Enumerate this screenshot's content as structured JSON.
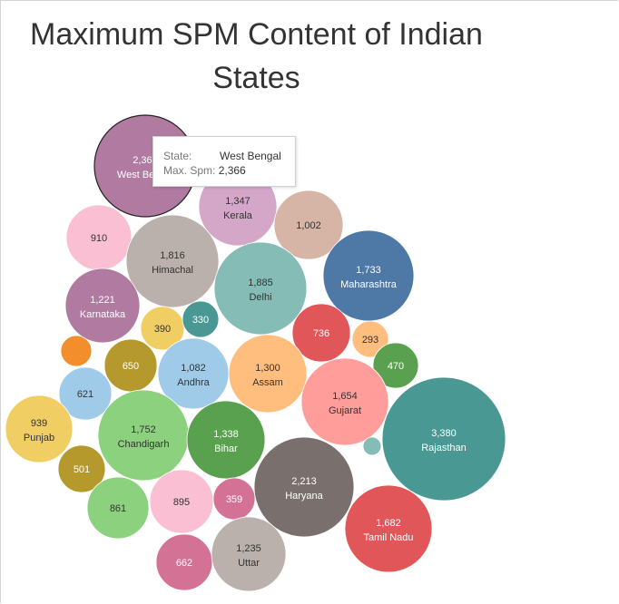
{
  "chart_data": {
    "type": "bubble",
    "title": "Maximum SPM Content of Indian States",
    "measure": "Max. Spm",
    "dimension": "State",
    "bubbles": [
      {
        "label": "West Bengal",
        "value": 2366,
        "color": "#b07aa1",
        "outlined": true
      },
      {
        "label": "Kerala",
        "value": 1347,
        "color": "#d4a6c8"
      },
      {
        "label": "",
        "value": 1002,
        "color": "#d7b5a6"
      },
      {
        "label": "",
        "value": 910,
        "color": "#fabfd2"
      },
      {
        "label": "Himachal",
        "value": 1816,
        "color": "#bab0ac"
      },
      {
        "label": "Delhi",
        "value": 1885,
        "color": "#86bcb6"
      },
      {
        "label": "Maharashtra",
        "value": 1733,
        "color": "#4e79a7"
      },
      {
        "label": "Karnataka",
        "value": 1221,
        "color": "#b07aa1"
      },
      {
        "label": "",
        "value": 390,
        "color": "#f1ce63"
      },
      {
        "label": "",
        "value": 330,
        "color": "#499894"
      },
      {
        "label": "",
        "value": 736,
        "color": "#e15759"
      },
      {
        "label": "",
        "value": 293,
        "color": "#ffbe7d"
      },
      {
        "label": "",
        "value": 470,
        "color": "#59a14f"
      },
      {
        "label": "",
        "value": null,
        "color": "#f28e2b"
      },
      {
        "label": "",
        "value": 650,
        "color": "#b6992d"
      },
      {
        "label": "Andhra",
        "value": 1082,
        "color": "#a0cbe8"
      },
      {
        "label": "Assam",
        "value": 1300,
        "color": "#ffbe7d"
      },
      {
        "label": "Gujarat",
        "value": 1654,
        "color": "#ff9d9a"
      },
      {
        "label": "",
        "value": 621,
        "color": "#a0cbe8"
      },
      {
        "label": "Punjab",
        "value": 939,
        "color": "#f1ce63"
      },
      {
        "label": "Chandigarh",
        "value": 1752,
        "color": "#8cd17d"
      },
      {
        "label": "Bihar",
        "value": 1338,
        "color": "#59a14f"
      },
      {
        "label": "",
        "value": null,
        "color": "#86bcb6"
      },
      {
        "label": "Rajasthan",
        "value": 3380,
        "color": "#499894"
      },
      {
        "label": "",
        "value": 501,
        "color": "#b6992d"
      },
      {
        "label": "Haryana",
        "value": 2213,
        "color": "#79706e"
      },
      {
        "label": "",
        "value": 895,
        "color": "#fabfd2"
      },
      {
        "label": "",
        "value": 359,
        "color": "#d37295"
      },
      {
        "label": "",
        "value": 861,
        "color": "#8cd17d"
      },
      {
        "label": "Tamil Nadu",
        "value": 1682,
        "color": "#e15759"
      },
      {
        "label": "",
        "value": 662,
        "color": "#d37295"
      },
      {
        "label": "Uttar",
        "value": 1235,
        "color": "#bab0ac"
      }
    ]
  },
  "tooltip": {
    "state_key": "State:",
    "state_value": "West Bengal",
    "spm_key": "Max. Spm:",
    "spm_value": "2,366"
  }
}
